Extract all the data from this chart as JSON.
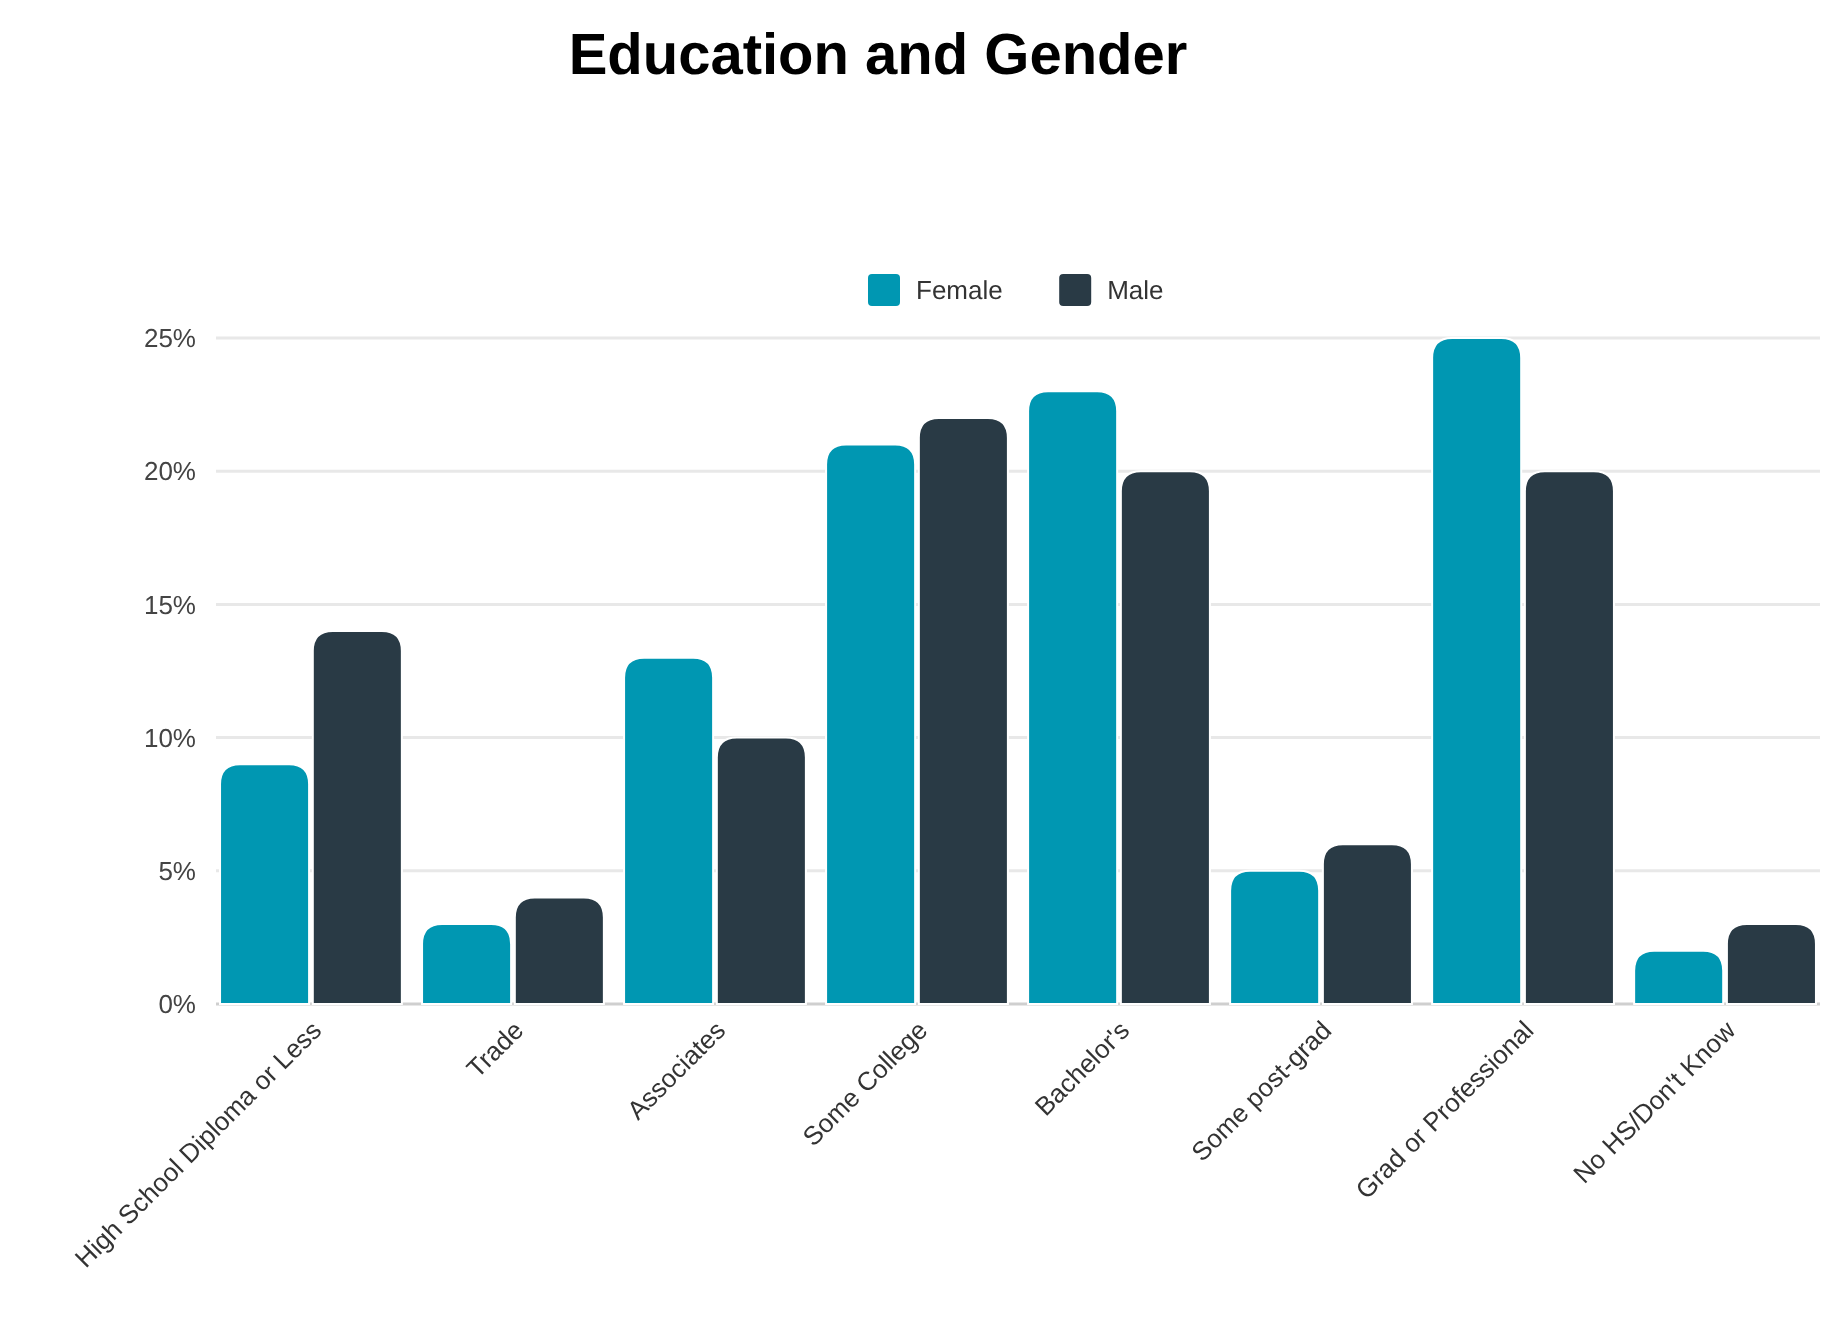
{
  "chart_data": {
    "type": "bar",
    "title": "Education and Gender",
    "categories": [
      "High School Diploma or Less",
      "Trade",
      "Associates",
      "Some College",
      "Bachelor's",
      "Some post-grad",
      "Grad or Professional",
      "No HS/Don't Know"
    ],
    "series": [
      {
        "name": "Female",
        "color": "#0097b2",
        "values": [
          9,
          3,
          13,
          21,
          23,
          5,
          25,
          2
        ]
      },
      {
        "name": "Male",
        "color": "#293a45",
        "values": [
          14,
          4,
          10,
          22,
          20,
          6,
          20,
          3
        ]
      }
    ],
    "ylim": [
      0,
      25
    ],
    "yticks": [
      {
        "value": 0,
        "label": "0%"
      },
      {
        "value": 5,
        "label": "5%"
      },
      {
        "value": 10,
        "label": "10%"
      },
      {
        "value": 15,
        "label": "15%"
      },
      {
        "value": 20,
        "label": "20%"
      },
      {
        "value": 25,
        "label": "25%"
      }
    ],
    "grid": "y",
    "legend": "top"
  }
}
